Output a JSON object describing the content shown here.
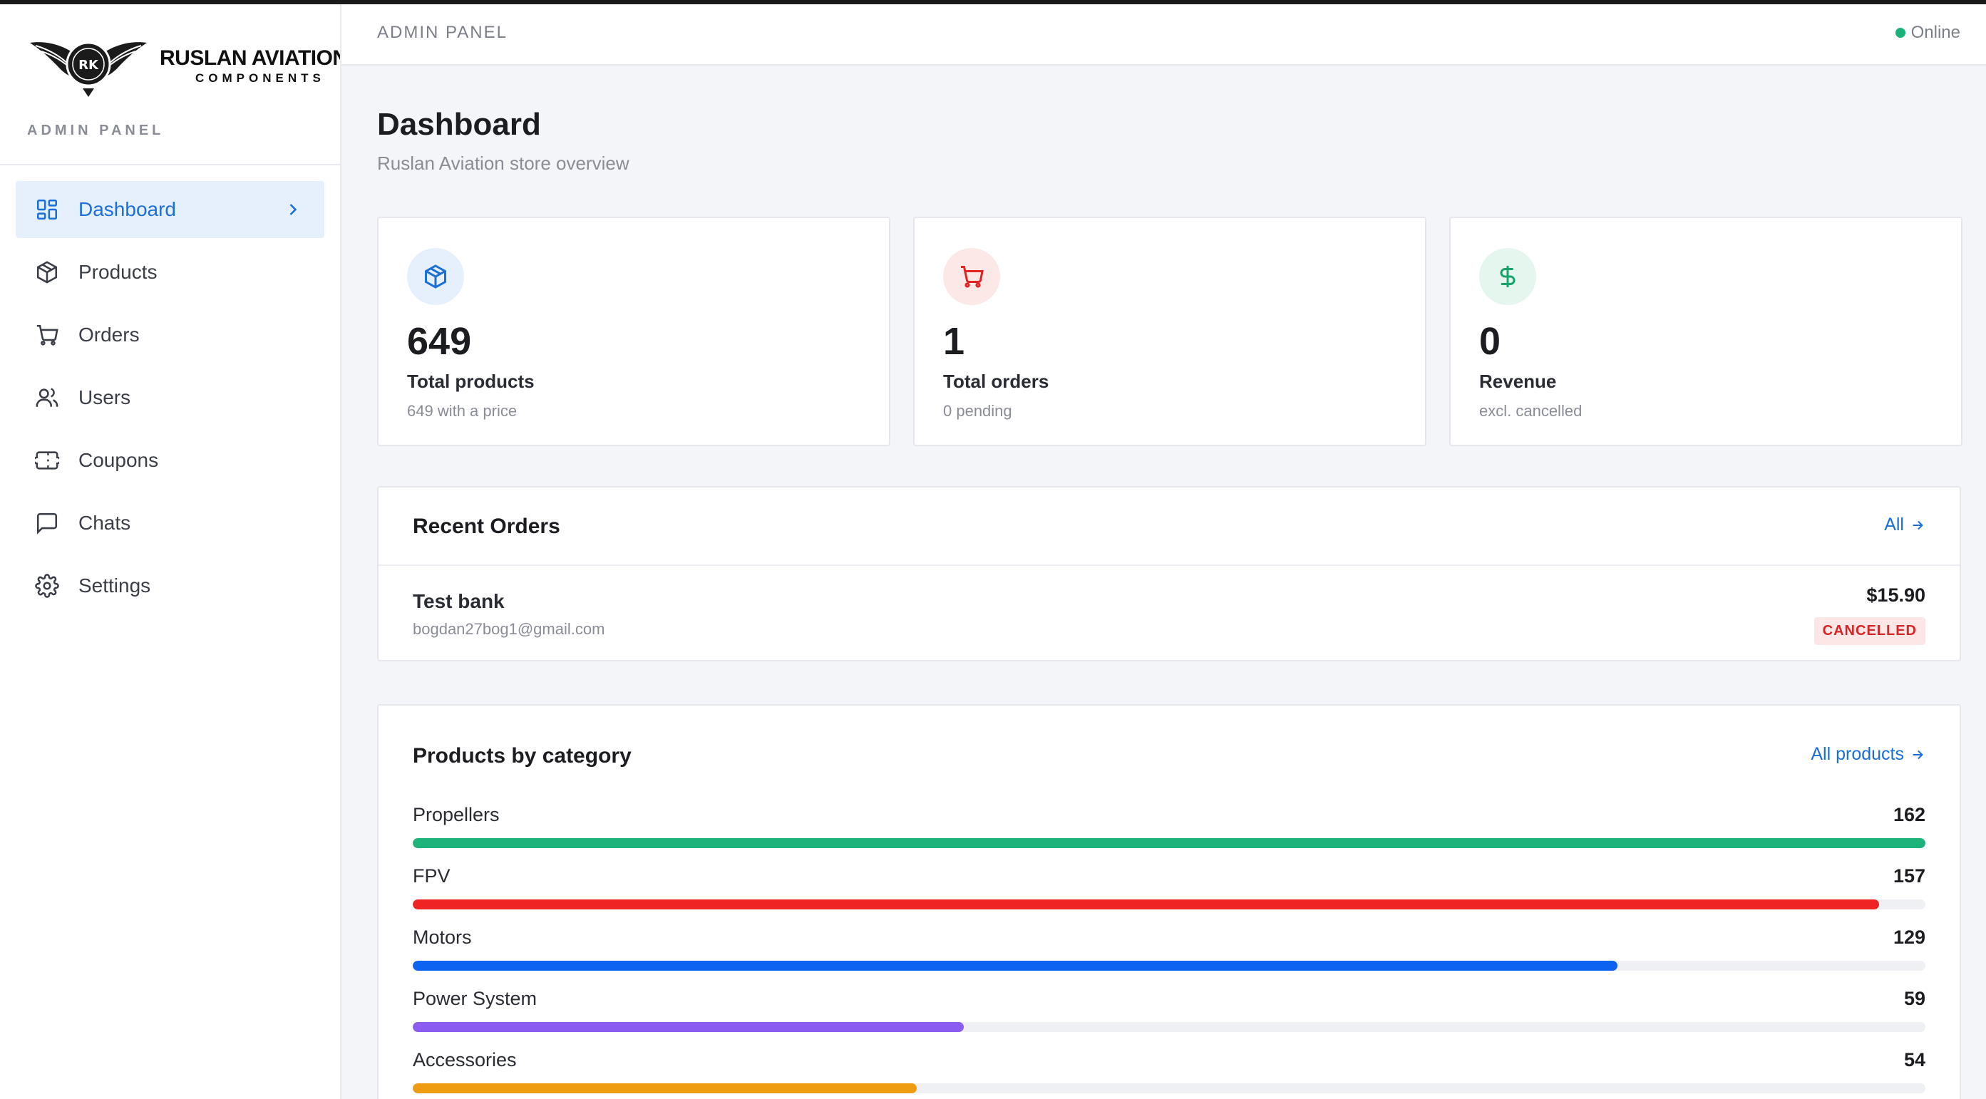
{
  "brand": {
    "logo_title": "RUSLAN AVIATION",
    "logo_subtitle": "COMPONENTS",
    "logo_emblem_text": "RK",
    "caption": "ADMIN PANEL"
  },
  "sidebar": {
    "items": [
      {
        "label": "Dashboard",
        "icon": "dashboard-icon",
        "active": true
      },
      {
        "label": "Products",
        "icon": "box-icon",
        "active": false
      },
      {
        "label": "Orders",
        "icon": "cart-icon",
        "active": false
      },
      {
        "label": "Users",
        "icon": "users-icon",
        "active": false
      },
      {
        "label": "Coupons",
        "icon": "ticket-icon",
        "active": false
      },
      {
        "label": "Chats",
        "icon": "chat-icon",
        "active": false
      },
      {
        "label": "Settings",
        "icon": "gear-icon",
        "active": false
      }
    ]
  },
  "topbar": {
    "title": "ADMIN PANEL",
    "status": "Online",
    "status_color": "#18b27a"
  },
  "page": {
    "title": "Dashboard",
    "subtitle": "Ruslan Aviation store overview"
  },
  "stats": [
    {
      "value": "649",
      "label": "Total products",
      "note": "649 with a price",
      "icon": "box-icon",
      "color": "#1a6fd8",
      "bg": "#e6f0fd"
    },
    {
      "value": "1",
      "label": "Total orders",
      "note": "0 pending",
      "icon": "cart-icon",
      "color": "#e02424",
      "bg": "#fde8e8"
    },
    {
      "value": "0",
      "label": "Revenue",
      "note": "excl. cancelled",
      "icon": "dollar-icon",
      "color": "#18a36b",
      "bg": "#e4f6ee"
    }
  ],
  "recent_orders": {
    "title": "Recent Orders",
    "link_label": "All",
    "orders": [
      {
        "name": "Test bank",
        "email": "bogdan27bog1@gmail.com",
        "amount": "$15.90",
        "status": "CANCELLED"
      }
    ]
  },
  "categories": {
    "title": "Products by category",
    "link_label": "All products",
    "max": 162,
    "items": [
      {
        "name": "Propellers",
        "count": 162,
        "color": "#1db37a"
      },
      {
        "name": "FPV",
        "count": 157,
        "color": "#ef2323"
      },
      {
        "name": "Motors",
        "count": 129,
        "color": "#0b63f0"
      },
      {
        "name": "Power System",
        "count": 59,
        "color": "#8b5cf0"
      },
      {
        "name": "Accessories",
        "count": 54,
        "color": "#f09c13"
      }
    ]
  }
}
